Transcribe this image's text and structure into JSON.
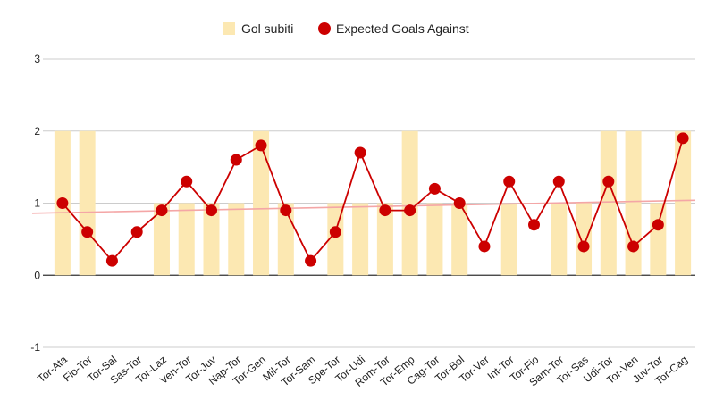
{
  "chart_data": {
    "type": "bar+line",
    "legend_position": "top-center",
    "grid": true,
    "ylim": [
      -1,
      3
    ],
    "yticks": [
      -1,
      0,
      1,
      2,
      3
    ],
    "categories": [
      "Tor-Ata",
      "Fio-Tor",
      "Tor-Sal",
      "Sas-Tor",
      "Tor-Laz",
      "Ven-Tor",
      "Tor-Juv",
      "Nap-Tor",
      "Tor-Gen",
      "Mil-Tor",
      "Tor-Sam",
      "Spe-Tor",
      "Tor-Udi",
      "Rom-Tor",
      "Tor-Emp",
      "Cag-Tor",
      "Tor-Bol",
      "Tor-Ver",
      "Int-Tor",
      "Tor-Fio",
      "Sam-Tor",
      "Tor-Sas",
      "Udi-Tor",
      "Tor-Ven",
      "Juv-Tor",
      "Tor-Cag"
    ],
    "series": [
      {
        "name": "Gol subiti",
        "kind": "bar",
        "color": "#fce8b2",
        "values": [
          2,
          2,
          0,
          0,
          1,
          1,
          1,
          1,
          2,
          1,
          0,
          1,
          1,
          1,
          2,
          1,
          1,
          0,
          1,
          0,
          1,
          1,
          2,
          2,
          1,
          2
        ]
      },
      {
        "name": "Expected Goals Against",
        "kind": "line",
        "color": "#cc0000",
        "marker_color": "#cc0000",
        "values": [
          1.0,
          0.6,
          0.2,
          0.6,
          0.9,
          1.3,
          0.9,
          1.6,
          1.8,
          0.9,
          0.2,
          0.6,
          1.7,
          0.9,
          0.9,
          1.2,
          1.0,
          0.4,
          1.3,
          0.7,
          1.3,
          0.4,
          1.3,
          0.4,
          0.7,
          1.9
        ]
      }
    ],
    "trendline": {
      "color": "#f4a6a6",
      "start": 0.86,
      "end": 1.04
    }
  }
}
